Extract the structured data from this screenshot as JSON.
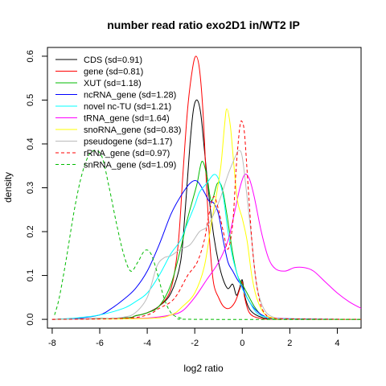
{
  "chart_data": {
    "type": "line",
    "title": "number read ratio exo2D1 in/WT2 IP",
    "xlabel": "log2 ratio",
    "ylabel": "density",
    "xlim": [
      -8.2,
      5.0
    ],
    "ylim": [
      -0.02,
      0.62
    ],
    "x_ticks": [
      -8,
      -6,
      -4,
      -2,
      0,
      2,
      4
    ],
    "y_ticks": [
      0.0,
      0.1,
      0.2,
      0.3,
      0.4,
      0.5,
      0.6
    ],
    "x_tick_labels": [
      "-8",
      "-6",
      "-4",
      "-2",
      "0",
      "2",
      "4"
    ],
    "y_tick_labels": [
      "0.0",
      "0.1",
      "0.2",
      "0.3",
      "0.4",
      "0.5",
      "0.6"
    ],
    "grid": false,
    "legend_position": "top-left",
    "series": [
      {
        "name": "CDS (sd=0.91)",
        "color": "#000000",
        "dash": false,
        "points": [
          [
            -8,
            0
          ],
          [
            -5,
            0.003
          ],
          [
            -4.5,
            0.008
          ],
          [
            -4,
            0.015
          ],
          [
            -3.5,
            0.03
          ],
          [
            -3,
            0.06
          ],
          [
            -2.6,
            0.13
          ],
          [
            -2.4,
            0.25
          ],
          [
            -2.2,
            0.4
          ],
          [
            -2.05,
            0.48
          ],
          [
            -1.9,
            0.5
          ],
          [
            -1.75,
            0.47
          ],
          [
            -1.6,
            0.39
          ],
          [
            -1.4,
            0.28
          ],
          [
            -1.2,
            0.19
          ],
          [
            -1.0,
            0.13
          ],
          [
            -0.8,
            0.09
          ],
          [
            -0.6,
            0.07
          ],
          [
            -0.4,
            0.08
          ],
          [
            -0.25,
            0.055
          ],
          [
            -0.12,
            0.07
          ],
          [
            0,
            0.09
          ],
          [
            0.12,
            0.05
          ],
          [
            0.35,
            0.02
          ],
          [
            0.8,
            0.005
          ],
          [
            1.5,
            0.001
          ],
          [
            5,
            0
          ]
        ]
      },
      {
        "name": "gene (sd=0.81)",
        "color": "#ff0000",
        "dash": false,
        "points": [
          [
            -8,
            0
          ],
          [
            -5,
            0.003
          ],
          [
            -4.5,
            0.008
          ],
          [
            -4,
            0.015
          ],
          [
            -3.5,
            0.03
          ],
          [
            -3,
            0.07
          ],
          [
            -2.7,
            0.17
          ],
          [
            -2.5,
            0.33
          ],
          [
            -2.3,
            0.48
          ],
          [
            -2.1,
            0.57
          ],
          [
            -1.95,
            0.6
          ],
          [
            -1.8,
            0.57
          ],
          [
            -1.65,
            0.47
          ],
          [
            -1.5,
            0.3
          ],
          [
            -1.35,
            0.16
          ],
          [
            -1.2,
            0.08
          ],
          [
            -1,
            0.05
          ],
          [
            -0.8,
            0.03
          ],
          [
            -0.55,
            0.025
          ],
          [
            -0.3,
            0.04
          ],
          [
            -0.1,
            0.07
          ],
          [
            0,
            0.085
          ],
          [
            0.1,
            0.05
          ],
          [
            0.3,
            0.015
          ],
          [
            0.7,
            0.003
          ],
          [
            1.5,
            0
          ],
          [
            5,
            0
          ]
        ]
      },
      {
        "name": "XUT (sd=1.18)",
        "color": "#00bb00",
        "dash": false,
        "points": [
          [
            -8,
            0
          ],
          [
            -5,
            0.003
          ],
          [
            -4.5,
            0.008
          ],
          [
            -4,
            0.015
          ],
          [
            -3.5,
            0.03
          ],
          [
            -3,
            0.08
          ],
          [
            -2.6,
            0.16
          ],
          [
            -2.3,
            0.23
          ],
          [
            -2.1,
            0.27
          ],
          [
            -1.9,
            0.31
          ],
          [
            -1.7,
            0.36
          ],
          [
            -1.5,
            0.33
          ],
          [
            -1.3,
            0.27
          ],
          [
            -1.05,
            0.31
          ],
          [
            -0.85,
            0.3
          ],
          [
            -0.65,
            0.24
          ],
          [
            -0.4,
            0.15
          ],
          [
            -0.2,
            0.1
          ],
          [
            0,
            0.08
          ],
          [
            0.2,
            0.06
          ],
          [
            0.5,
            0.03
          ],
          [
            0.8,
            0.01
          ],
          [
            1.2,
            0.002
          ],
          [
            2,
            0
          ],
          [
            5,
            0
          ]
        ]
      },
      {
        "name": "ncRNA_gene (sd=1.28)",
        "color": "#0000ff",
        "dash": false,
        "points": [
          [
            -8,
            0
          ],
          [
            -7,
            0.002
          ],
          [
            -6,
            0.01
          ],
          [
            -5.5,
            0.025
          ],
          [
            -5,
            0.045
          ],
          [
            -4.5,
            0.07
          ],
          [
            -4,
            0.11
          ],
          [
            -3.5,
            0.17
          ],
          [
            -3,
            0.24
          ],
          [
            -2.6,
            0.28
          ],
          [
            -2.2,
            0.31
          ],
          [
            -1.9,
            0.315
          ],
          [
            -1.6,
            0.29
          ],
          [
            -1.4,
            0.27
          ],
          [
            -1.2,
            0.265
          ],
          [
            -1,
            0.24
          ],
          [
            -0.8,
            0.18
          ],
          [
            -0.6,
            0.13
          ],
          [
            -0.4,
            0.11
          ],
          [
            -0.2,
            0.09
          ],
          [
            0,
            0.075
          ],
          [
            0.2,
            0.05
          ],
          [
            0.5,
            0.025
          ],
          [
            0.9,
            0.008
          ],
          [
            1.5,
            0.002
          ],
          [
            5,
            0
          ]
        ]
      },
      {
        "name": "novel nc-TU (sd=1.21)",
        "color": "#00ffff",
        "dash": false,
        "points": [
          [
            -8,
            0
          ],
          [
            -7,
            0.003
          ],
          [
            -6,
            0.01
          ],
          [
            -5,
            0.025
          ],
          [
            -4.5,
            0.04
          ],
          [
            -4,
            0.06
          ],
          [
            -3.5,
            0.1
          ],
          [
            -3,
            0.15
          ],
          [
            -2.6,
            0.18
          ],
          [
            -2.3,
            0.22
          ],
          [
            -2,
            0.26
          ],
          [
            -1.8,
            0.29
          ],
          [
            -1.5,
            0.31
          ],
          [
            -1.2,
            0.33
          ],
          [
            -1,
            0.32
          ],
          [
            -0.8,
            0.28
          ],
          [
            -0.6,
            0.2
          ],
          [
            -0.4,
            0.14
          ],
          [
            -0.2,
            0.1
          ],
          [
            0,
            0.07
          ],
          [
            0.3,
            0.04
          ],
          [
            0.6,
            0.015
          ],
          [
            1,
            0.005
          ],
          [
            1.5,
            0.001
          ],
          [
            5,
            0
          ]
        ]
      },
      {
        "name": "tRNA_gene (sd=1.64)",
        "color": "#ff00ff",
        "dash": false,
        "points": [
          [
            -8,
            0
          ],
          [
            -6,
            0.001
          ],
          [
            -4,
            0.003
          ],
          [
            -3,
            0.01
          ],
          [
            -2.5,
            0.02
          ],
          [
            -2,
            0.05
          ],
          [
            -1.5,
            0.09
          ],
          [
            -1,
            0.13
          ],
          [
            -0.6,
            0.18
          ],
          [
            -0.3,
            0.25
          ],
          [
            -0.1,
            0.3
          ],
          [
            0.1,
            0.33
          ],
          [
            0.3,
            0.32
          ],
          [
            0.5,
            0.28
          ],
          [
            0.8,
            0.2
          ],
          [
            1.1,
            0.14
          ],
          [
            1.4,
            0.115
          ],
          [
            1.8,
            0.11
          ],
          [
            2.2,
            0.118
          ],
          [
            2.6,
            0.118
          ],
          [
            3,
            0.11
          ],
          [
            3.5,
            0.085
          ],
          [
            4,
            0.06
          ],
          [
            4.5,
            0.04
          ],
          [
            5,
            0.025
          ]
        ]
      },
      {
        "name": "snoRNA_gene (sd=0.83)",
        "color": "#ffff00",
        "dash": false,
        "points": [
          [
            -8,
            0
          ],
          [
            -4,
            0.002
          ],
          [
            -3,
            0.01
          ],
          [
            -2.5,
            0.03
          ],
          [
            -2,
            0.06
          ],
          [
            -1.6,
            0.12
          ],
          [
            -1.3,
            0.22
          ],
          [
            -1.1,
            0.28
          ],
          [
            -0.9,
            0.35
          ],
          [
            -0.75,
            0.44
          ],
          [
            -0.65,
            0.48
          ],
          [
            -0.5,
            0.44
          ],
          [
            -0.35,
            0.35
          ],
          [
            -0.2,
            0.27
          ],
          [
            0,
            0.23
          ],
          [
            0.2,
            0.18
          ],
          [
            0.4,
            0.1
          ],
          [
            0.6,
            0.05
          ],
          [
            0.9,
            0.015
          ],
          [
            1.3,
            0.003
          ],
          [
            2,
            0
          ],
          [
            5,
            0
          ]
        ]
      },
      {
        "name": "pseudogene (sd=1.17)",
        "color": "#bbbbbb",
        "dash": false,
        "points": [
          [
            -8,
            0
          ],
          [
            -6,
            0.001
          ],
          [
            -5,
            0.005
          ],
          [
            -4.5,
            0.015
          ],
          [
            -4,
            0.05
          ],
          [
            -3.6,
            0.12
          ],
          [
            -3.3,
            0.14
          ],
          [
            -3,
            0.145
          ],
          [
            -2.6,
            0.16
          ],
          [
            -2.2,
            0.17
          ],
          [
            -1.8,
            0.2
          ],
          [
            -1.5,
            0.21
          ],
          [
            -1.2,
            0.24
          ],
          [
            -0.9,
            0.28
          ],
          [
            -0.6,
            0.33
          ],
          [
            -0.3,
            0.37
          ],
          [
            -0.15,
            0.385
          ],
          [
            0,
            0.37
          ],
          [
            0.2,
            0.28
          ],
          [
            0.4,
            0.18
          ],
          [
            0.6,
            0.08
          ],
          [
            0.9,
            0.025
          ],
          [
            1.3,
            0.005
          ],
          [
            2,
            0
          ],
          [
            5,
            0
          ]
        ]
      },
      {
        "name": "rRNA_gene (sd=0.97)",
        "color": "#ff0000",
        "dash": true,
        "points": [
          [
            -8,
            0
          ],
          [
            -5,
            0.002
          ],
          [
            -4,
            0.01
          ],
          [
            -3.5,
            0.025
          ],
          [
            -3,
            0.04
          ],
          [
            -2.7,
            0.06
          ],
          [
            -2.3,
            0.1
          ],
          [
            -1.9,
            0.13
          ],
          [
            -1.6,
            0.18
          ],
          [
            -1.4,
            0.24
          ],
          [
            -1.2,
            0.28
          ],
          [
            -1,
            0.25
          ],
          [
            -0.8,
            0.2
          ],
          [
            -0.6,
            0.16
          ],
          [
            -0.4,
            0.22
          ],
          [
            -0.25,
            0.35
          ],
          [
            -0.1,
            0.44
          ],
          [
            0,
            0.45
          ],
          [
            0.1,
            0.42
          ],
          [
            0.25,
            0.3
          ],
          [
            0.45,
            0.15
          ],
          [
            0.7,
            0.05
          ],
          [
            1,
            0.01
          ],
          [
            1.5,
            0.002
          ],
          [
            5,
            0
          ]
        ]
      },
      {
        "name": "snRNA_gene (sd=1.09)",
        "color": "#00bb00",
        "dash": true,
        "points": [
          [
            -7.9,
            0.01
          ],
          [
            -7.7,
            0.05
          ],
          [
            -7.4,
            0.14
          ],
          [
            -7.1,
            0.24
          ],
          [
            -6.8,
            0.32
          ],
          [
            -6.5,
            0.37
          ],
          [
            -6.2,
            0.385
          ],
          [
            -5.9,
            0.37
          ],
          [
            -5.6,
            0.3
          ],
          [
            -5.3,
            0.22
          ],
          [
            -5,
            0.15
          ],
          [
            -4.7,
            0.11
          ],
          [
            -4.4,
            0.13
          ],
          [
            -4.1,
            0.157
          ],
          [
            -3.85,
            0.15
          ],
          [
            -3.6,
            0.11
          ],
          [
            -3.3,
            0.05
          ],
          [
            -3,
            0.015
          ],
          [
            -2.6,
            0.003
          ],
          [
            -2,
            0
          ],
          [
            5,
            0
          ]
        ]
      }
    ]
  }
}
